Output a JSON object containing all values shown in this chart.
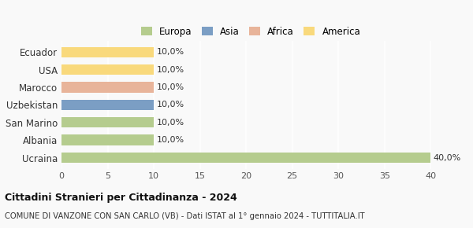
{
  "categories": [
    "Ucraina",
    "Albania",
    "San Marino",
    "Uzbekistan",
    "Marocco",
    "USA",
    "Ecuador"
  ],
  "values": [
    40.0,
    10.0,
    10.0,
    10.0,
    10.0,
    10.0,
    10.0
  ],
  "colors": [
    "#b5cc8e",
    "#b5cc8e",
    "#b5cc8e",
    "#7b9ec4",
    "#e8b49a",
    "#f9d97c",
    "#f9d97c"
  ],
  "legend": [
    {
      "label": "Europa",
      "color": "#b5cc8e"
    },
    {
      "label": "Asia",
      "color": "#7b9ec4"
    },
    {
      "label": "Africa",
      "color": "#e8b49a"
    },
    {
      "label": "America",
      "color": "#f9d97c"
    }
  ],
  "xlim": [
    0,
    41
  ],
  "xticks": [
    0,
    5,
    10,
    15,
    20,
    25,
    30,
    35,
    40
  ],
  "bar_labels": [
    "40,0%",
    "10,0%",
    "10,0%",
    "10,0%",
    "10,0%",
    "10,0%",
    "10,0%"
  ],
  "title": "Cittadini Stranieri per Cittadinanza - 2024",
  "subtitle": "COMUNE DI VANZONE CON SAN CARLO (VB) - Dati ISTAT al 1° gennaio 2024 - TUTTITALIA.IT",
  "background_color": "#f9f9f9",
  "grid_color": "#ffffff",
  "bar_height": 0.6
}
